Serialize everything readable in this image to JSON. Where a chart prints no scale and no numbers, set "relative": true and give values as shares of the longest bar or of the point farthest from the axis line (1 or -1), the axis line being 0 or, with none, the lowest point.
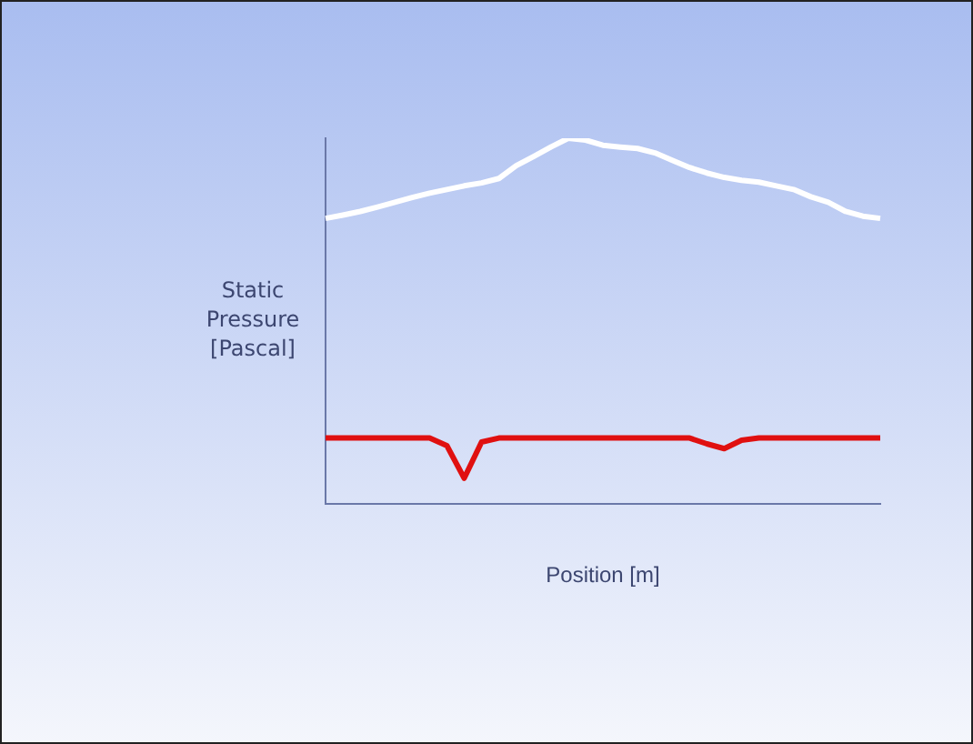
{
  "chart_data": {
    "type": "line",
    "relative": true,
    "ylabel": "Static Pressure [Pascal]",
    "xlabel": "Position [m]",
    "categories": [
      null,
      null,
      null,
      null,
      null,
      null,
      null,
      null,
      null,
      null,
      null,
      null,
      null,
      null,
      null,
      null,
      null,
      null,
      null,
      null,
      null,
      null,
      null,
      null,
      null,
      null,
      null,
      null,
      null,
      null,
      null,
      null,
      null
    ],
    "series": [
      {
        "color": "#ffffff",
        "values": [
          0.781,
          0.79,
          0.8,
          0.812,
          0.825,
          0.838,
          0.85,
          0.86,
          0.87,
          0.878,
          0.89,
          0.925,
          0.95,
          0.976,
          1,
          0.995,
          0.981,
          0.976,
          0.972,
          0.96,
          0.94,
          0.92,
          0.905,
          0.893,
          0.885,
          0.88,
          0.87,
          0.86,
          0.84,
          0.825,
          0.8,
          0.787,
          0.781
        ]
      },
      {
        "color": "#e01010",
        "values": [
          0.181,
          0.181,
          0.181,
          0.181,
          0.181,
          0.181,
          0.181,
          0.16,
          0.071,
          0.17,
          0.181,
          0.181,
          0.181,
          0.181,
          0.181,
          0.181,
          0.181,
          0.181,
          0.181,
          0.181,
          0.181,
          0.181,
          0.165,
          0.152,
          0.175,
          0.181,
          0.181,
          0.181,
          0.181,
          0.181,
          0.181,
          0.181,
          0.181
        ]
      }
    ],
    "marker": "none",
    "line_style": "solid"
  }
}
